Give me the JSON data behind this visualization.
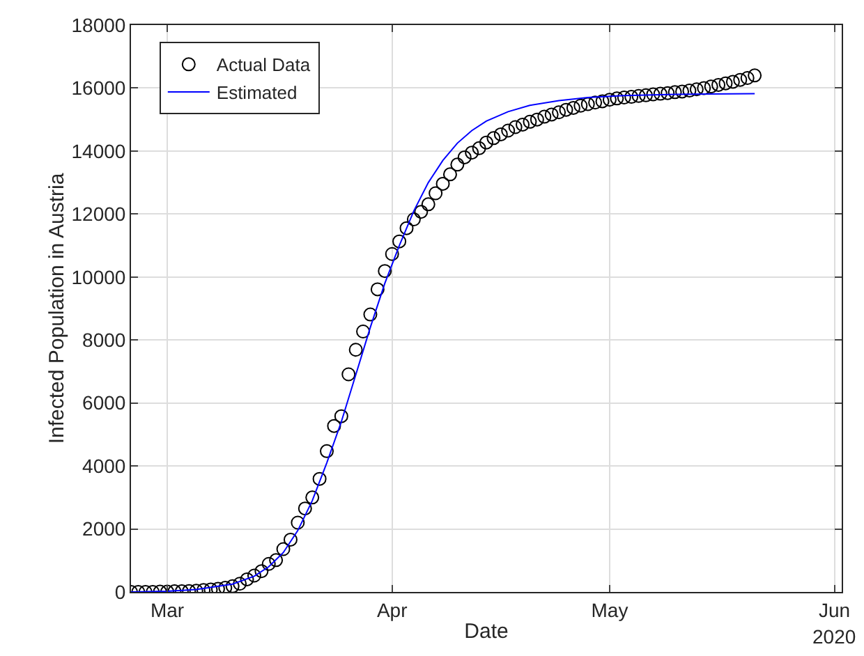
{
  "chart_data": {
    "type": "scatter",
    "xlabel": "Date",
    "ylabel": "Infected Population in Austria",
    "annotations": [
      "2020"
    ],
    "xlim": [
      "2020-02-25",
      "2020-06-02"
    ],
    "xticks": [
      {
        "value": "2020-03-01",
        "label": "Mar"
      },
      {
        "value": "2020-04-01",
        "label": "Apr"
      },
      {
        "value": "2020-05-01",
        "label": "May"
      },
      {
        "value": "2020-06-01",
        "label": "Jun"
      }
    ],
    "ylim": [
      0,
      18000
    ],
    "yticks": [
      0,
      2000,
      4000,
      6000,
      8000,
      10000,
      12000,
      14000,
      16000,
      18000
    ],
    "grid": true,
    "legend": "top left",
    "marker": "circle",
    "series": [
      {
        "name": "Actual Data",
        "type": "scatter",
        "color": "#000000",
        "x": [
          "2020-02-25",
          "2020-02-26",
          "2020-02-27",
          "2020-02-28",
          "2020-02-29",
          "2020-03-01",
          "2020-03-02",
          "2020-03-03",
          "2020-03-04",
          "2020-03-05",
          "2020-03-06",
          "2020-03-07",
          "2020-03-08",
          "2020-03-09",
          "2020-03-10",
          "2020-03-11",
          "2020-03-12",
          "2020-03-13",
          "2020-03-14",
          "2020-03-15",
          "2020-03-16",
          "2020-03-17",
          "2020-03-18",
          "2020-03-19",
          "2020-03-20",
          "2020-03-21",
          "2020-03-22",
          "2020-03-23",
          "2020-03-24",
          "2020-03-25",
          "2020-03-26",
          "2020-03-27",
          "2020-03-28",
          "2020-03-29",
          "2020-03-30",
          "2020-03-31",
          "2020-04-01",
          "2020-04-02",
          "2020-04-03",
          "2020-04-04",
          "2020-04-05",
          "2020-04-06",
          "2020-04-07",
          "2020-04-08",
          "2020-04-09",
          "2020-04-10",
          "2020-04-11",
          "2020-04-12",
          "2020-04-13",
          "2020-04-14",
          "2020-04-15",
          "2020-04-16",
          "2020-04-17",
          "2020-04-18",
          "2020-04-19",
          "2020-04-20",
          "2020-04-21",
          "2020-04-22",
          "2020-04-23",
          "2020-04-24",
          "2020-04-25",
          "2020-04-26",
          "2020-04-27",
          "2020-04-28",
          "2020-04-29",
          "2020-04-30",
          "2020-05-01",
          "2020-05-02",
          "2020-05-03",
          "2020-05-04",
          "2020-05-05",
          "2020-05-06",
          "2020-05-07",
          "2020-05-08",
          "2020-05-09",
          "2020-05-10",
          "2020-05-11",
          "2020-05-12",
          "2020-05-13",
          "2020-05-14",
          "2020-05-15",
          "2020-05-16",
          "2020-05-17",
          "2020-05-18",
          "2020-05-19",
          "2020-05-20",
          "2020-05-21"
        ],
        "values": [
          0,
          0,
          0,
          0,
          10,
          10,
          20,
          20,
          30,
          40,
          60,
          80,
          100,
          130,
          180,
          260,
          400,
          520,
          660,
          890,
          1010,
          1360,
          1660,
          2200,
          2650,
          3000,
          3590,
          4470,
          5270,
          5580,
          6910,
          7690,
          8270,
          8810,
          9610,
          10190,
          10730,
          11130,
          11550,
          11830,
          12070,
          12310,
          12660,
          12960,
          13260,
          13570,
          13800,
          13950,
          14090,
          14270,
          14410,
          14530,
          14650,
          14760,
          14840,
          14930,
          15000,
          15090,
          15160,
          15230,
          15310,
          15370,
          15440,
          15490,
          15540,
          15580,
          15630,
          15670,
          15700,
          15720,
          15750,
          15770,
          15800,
          15820,
          15840,
          15870,
          15890,
          15920,
          15960,
          16000,
          16050,
          16100,
          16150,
          16200,
          16260,
          16320,
          16400
        ]
      },
      {
        "name": "Estimated",
        "type": "line",
        "color": "#0000ff",
        "marker": "none",
        "line_style": "solid",
        "x": [
          "2020-02-25",
          "2020-03-01",
          "2020-03-05",
          "2020-03-10",
          "2020-03-13",
          "2020-03-15",
          "2020-03-17",
          "2020-03-19",
          "2020-03-21",
          "2020-03-23",
          "2020-03-25",
          "2020-03-27",
          "2020-03-29",
          "2020-03-31",
          "2020-04-02",
          "2020-04-04",
          "2020-04-06",
          "2020-04-08",
          "2020-04-10",
          "2020-04-12",
          "2020-04-14",
          "2020-04-17",
          "2020-04-20",
          "2020-04-24",
          "2020-04-28",
          "2020-05-03",
          "2020-05-10",
          "2020-05-21"
        ],
        "values": [
          0,
          20,
          80,
          250,
          500,
          800,
          1250,
          1950,
          2900,
          4100,
          5400,
          6900,
          8400,
          9800,
          11000,
          12100,
          13000,
          13700,
          14250,
          14650,
          14950,
          15250,
          15450,
          15600,
          15700,
          15760,
          15800,
          15820
        ]
      }
    ]
  }
}
